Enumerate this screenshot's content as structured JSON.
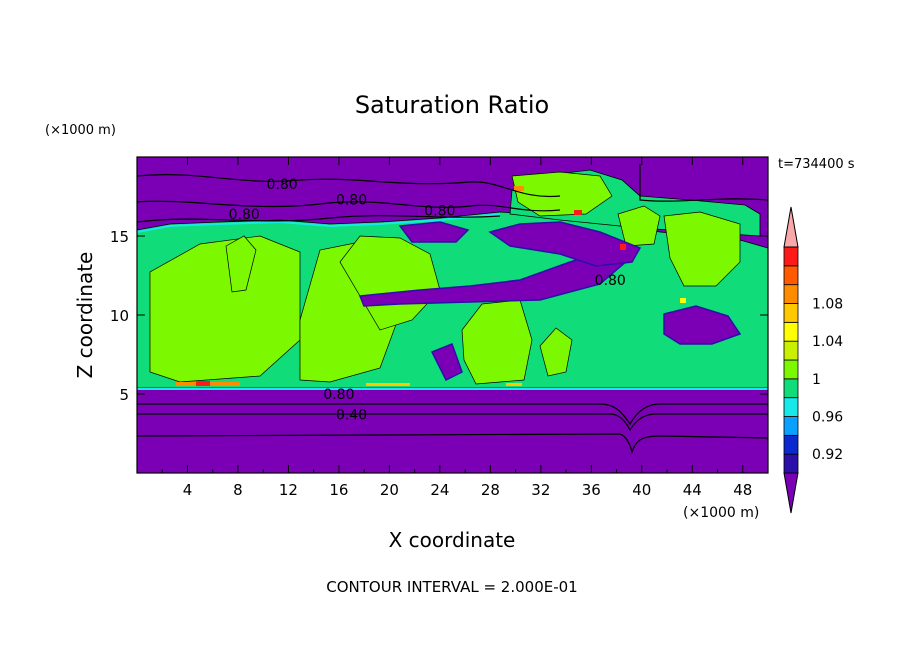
{
  "chart_data": {
    "type": "heatmap",
    "title": "Saturation Ratio",
    "xlabel": "X coordinate",
    "ylabel": "Z coordinate",
    "x_unit": "(×1000 m)",
    "y_unit": "(×1000 m)",
    "xlim": [
      0,
      50
    ],
    "ylim": [
      0,
      20
    ],
    "x_ticks": [
      4,
      8,
      12,
      16,
      20,
      24,
      28,
      32,
      36,
      40,
      44,
      48
    ],
    "y_ticks": [
      5,
      10,
      15
    ],
    "time_label": "t=734400 s",
    "footer": "CONTOUR INTERVAL = 2.000E-01",
    "contour_labels": [
      {
        "text": "0.80",
        "x": 11.5,
        "z": 18.3
      },
      {
        "text": "0.80",
        "x": 17.0,
        "z": 17.3
      },
      {
        "text": "0.80",
        "x": 8.5,
        "z": 16.4
      },
      {
        "text": "0.80",
        "x": 24.0,
        "z": 16.6
      },
      {
        "text": "0.80",
        "x": 37.5,
        "z": 12.2
      },
      {
        "text": "0.80",
        "x": 16.0,
        "z": 5.0
      },
      {
        "text": "0.40",
        "x": 17.0,
        "z": 3.7
      }
    ],
    "colorbar": {
      "levels": [
        0.92,
        0.96,
        1,
        1.04,
        1.08
      ],
      "tick_labels": [
        "0.92",
        "0.96",
        "1",
        "1.04",
        "1.08"
      ],
      "colors": [
        "#7b00b5",
        "#2a0fa8",
        "#0a2ad0",
        "#0aa0ff",
        "#18e8e8",
        "#10dc7a",
        "#7cf800",
        "#c8f000",
        "#ffff00",
        "#ffc800",
        "#ff8c00",
        "#ff5a00",
        "#ff1a1a",
        "#f8a8a8"
      ]
    },
    "regions": [
      {
        "level": "lt_0.92",
        "color": "#7b00b5",
        "desc": "z<5.5 and z>16"
      },
      {
        "level": "0.96-1",
        "color": "#10dc7a"
      },
      {
        "level": "1-1.04",
        "color": "#7cf800"
      }
    ]
  }
}
